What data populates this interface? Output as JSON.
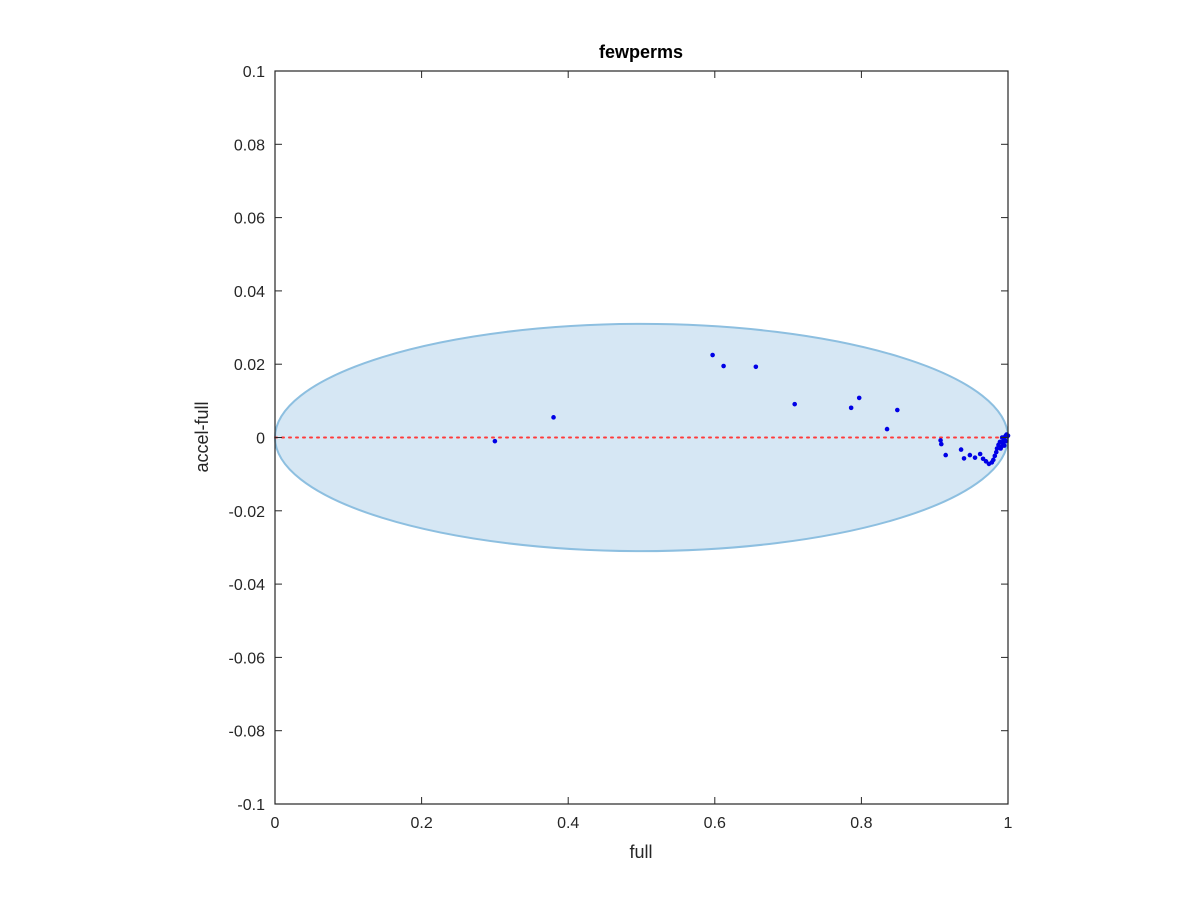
{
  "chart_data": {
    "type": "scatter",
    "title": "fewperms",
    "xlabel": "full",
    "ylabel": "accel-full",
    "xlim": [
      0,
      1
    ],
    "ylim": [
      -0.1,
      0.1
    ],
    "x_ticks": [
      0,
      0.2,
      0.4,
      0.6,
      0.8,
      1
    ],
    "x_tick_labels": [
      "0",
      "0.2",
      "0.4",
      "0.6",
      "0.8",
      "1"
    ],
    "y_ticks": [
      0.1,
      0.08,
      0.06,
      0.04,
      0.02,
      0,
      -0.02,
      -0.04,
      -0.06,
      -0.08,
      -0.1
    ],
    "y_tick_labels": [
      "0.1",
      "0.08",
      "0.06",
      "0.04",
      "0.02",
      "0",
      "-0.02",
      "-0.04",
      "-0.06",
      "-0.08",
      "-0.1"
    ],
    "grid": false,
    "ellipse": {
      "cx": 0.5,
      "cy": 0,
      "rx": 0.5,
      "ry": 0.031,
      "fill_color": "#d6e7f4",
      "edge_color": "#8dbfe0"
    },
    "reference_line": {
      "y": 0,
      "x_range": [
        0,
        1
      ],
      "color": "#ff3b3b",
      "style": "dotted"
    },
    "series": [
      {
        "color": "#0000e6",
        "points": [
          [
            0.3,
            -0.001
          ],
          [
            0.38,
            0.0055
          ],
          [
            0.597,
            0.0225
          ],
          [
            0.612,
            0.0195
          ],
          [
            0.656,
            0.0193
          ],
          [
            0.709,
            0.0091
          ],
          [
            0.786,
            0.0081
          ],
          [
            0.797,
            0.0108
          ],
          [
            0.835,
            0.0023
          ],
          [
            0.849,
            0.0075
          ],
          [
            0.908,
            -0.0008
          ],
          [
            0.909,
            -0.0018
          ],
          [
            0.915,
            -0.0048
          ],
          [
            0.936,
            -0.0033
          ],
          [
            0.94,
            -0.0057
          ],
          [
            0.948,
            -0.0048
          ],
          [
            0.955,
            -0.0055
          ],
          [
            0.962,
            -0.0045
          ],
          [
            0.966,
            -0.0058
          ],
          [
            0.97,
            -0.0065
          ],
          [
            0.974,
            -0.0072
          ],
          [
            0.978,
            -0.0068
          ],
          [
            0.98,
            -0.0061
          ],
          [
            0.982,
            -0.005
          ],
          [
            0.985,
            -0.003
          ],
          [
            0.987,
            -0.002
          ],
          [
            0.989,
            -0.0012
          ],
          [
            0.991,
            -0.0025
          ],
          [
            0.993,
            -0.0015
          ],
          [
            0.994,
            -0.0008
          ],
          [
            0.995,
            -0.0022
          ],
          [
            0.996,
            0.0002
          ],
          [
            0.997,
            0.0005
          ],
          [
            0.998,
            0.0008
          ],
          [
            0.999,
            0.0003
          ],
          [
            1.0,
            0.0005
          ],
          [
            0.992,
            0.0
          ],
          [
            0.99,
            -0.003
          ],
          [
            0.984,
            -0.004
          ],
          [
            0.997,
            -0.001
          ]
        ]
      }
    ]
  }
}
